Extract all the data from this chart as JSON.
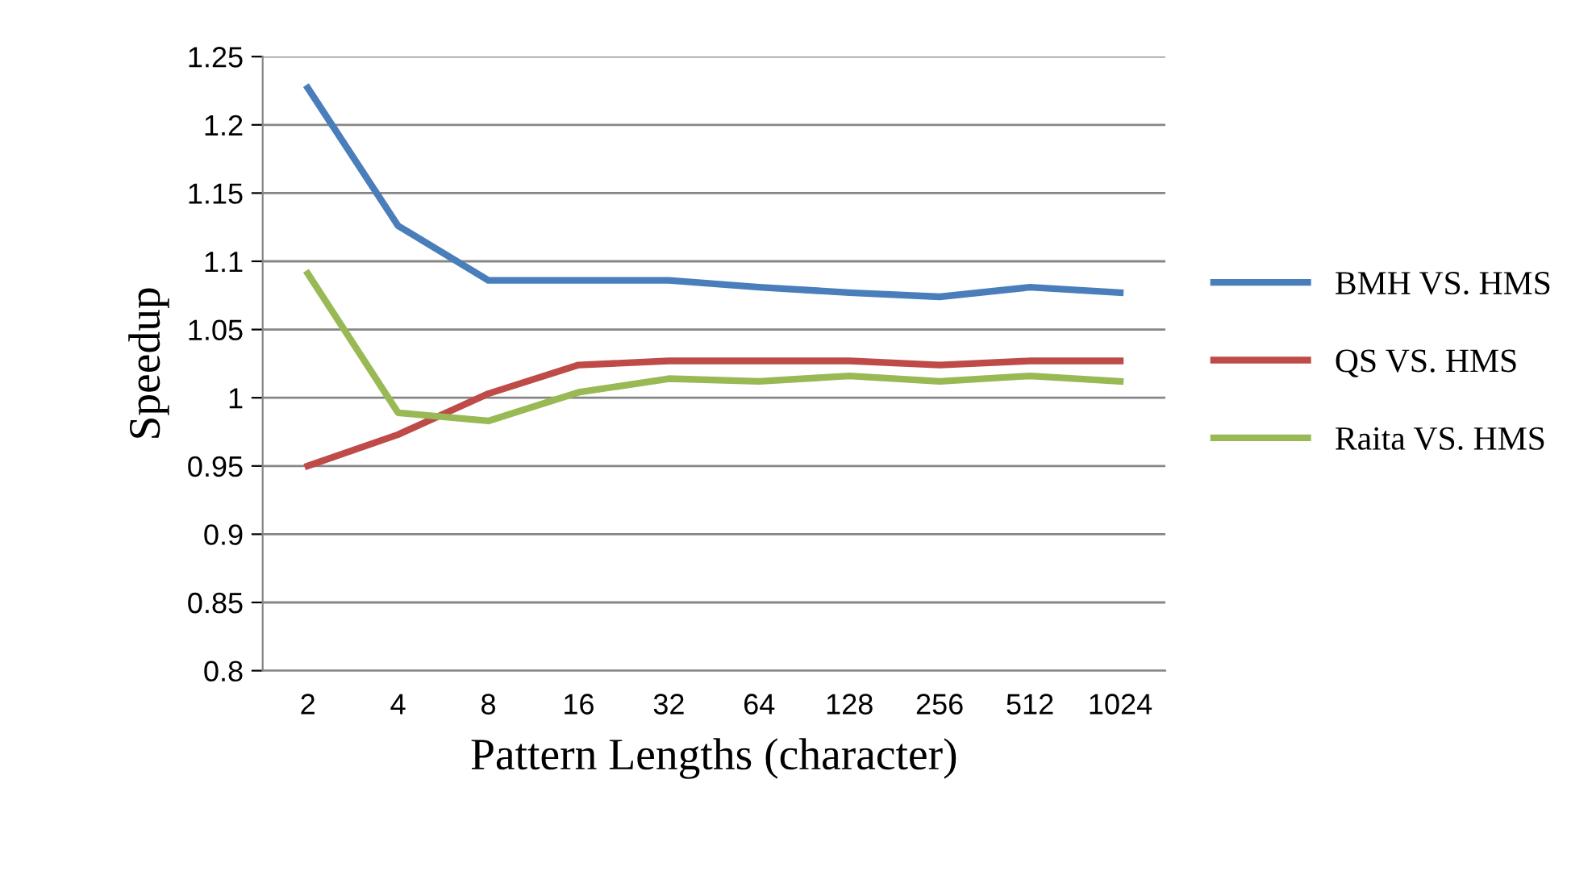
{
  "chart_data": {
    "type": "line",
    "xlabel": "Pattern Lengths (character)",
    "ylabel": "Speedup",
    "categories": [
      "2",
      "4",
      "8",
      "16",
      "32",
      "64",
      "128",
      "256",
      "512",
      "1024"
    ],
    "series": [
      {
        "name": "BMH VS. HMS",
        "color": "#4a7ebb",
        "values": [
          1.227,
          1.126,
          1.086,
          1.086,
          1.086,
          1.081,
          1.077,
          1.074,
          1.081,
          1.077
        ]
      },
      {
        "name": "QS VS. HMS",
        "color": "#be4b48",
        "values": [
          0.95,
          0.973,
          1.003,
          1.024,
          1.027,
          1.027,
          1.027,
          1.024,
          1.027,
          1.027
        ]
      },
      {
        "name": "Raita VS. HMS",
        "color": "#98b954",
        "values": [
          1.091,
          0.989,
          0.983,
          1.004,
          1.014,
          1.012,
          1.016,
          1.012,
          1.016,
          1.012
        ]
      }
    ],
    "ylim": [
      0.8,
      1.25
    ],
    "yticks": [
      0.8,
      0.85,
      0.9,
      0.95,
      1,
      1.05,
      1.1,
      1.15,
      1.2,
      1.25
    ],
    "grid": "y",
    "legend": "right",
    "marker": "none",
    "line_style": "solid"
  }
}
